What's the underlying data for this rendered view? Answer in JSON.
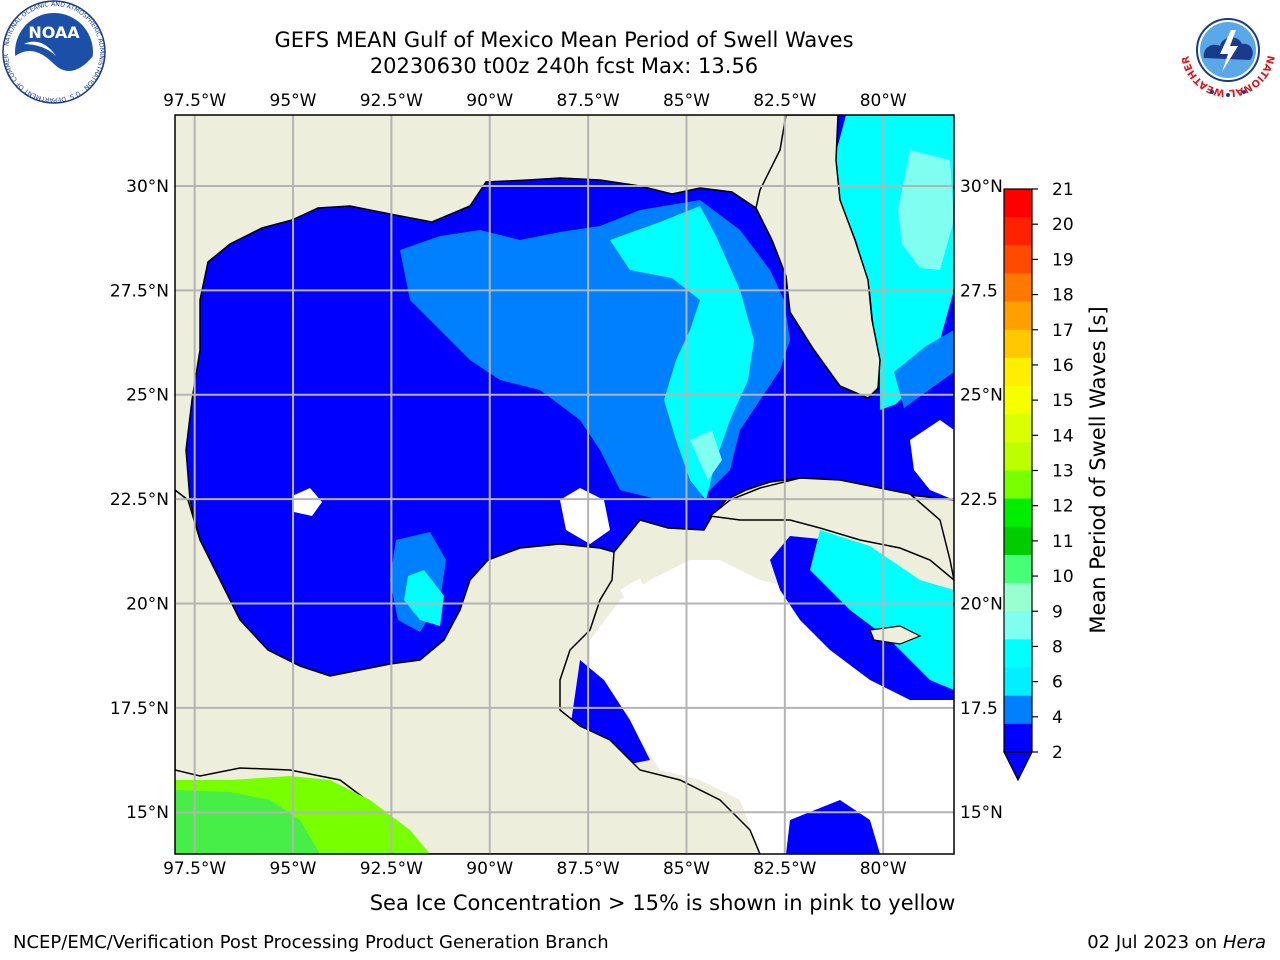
{
  "title_line1": "GEFS MEAN Gulf of Mexico Mean Period of Swell Waves",
  "title_line2": "20230630 t00z 240h fcst   Max: 13.56",
  "map": {
    "lon_labels": [
      "97.5°W",
      "95°W",
      "92.5°W",
      "90°W",
      "87.5°W",
      "85°W",
      "82.5°W",
      "80°W"
    ],
    "lat_labels_left": [
      "30°N",
      "27.5°N",
      "25°N",
      "22.5°N",
      "20°N",
      "17.5°N",
      "15°N"
    ],
    "lat_labels_right": [
      "30°N",
      "27.5",
      "25°N",
      "22.5",
      "20°N",
      "17.5",
      "15°N"
    ],
    "lon_values": [
      -97.5,
      -95,
      -92.5,
      -90,
      -87.5,
      -85,
      -82.5,
      -80
    ],
    "lat_values": [
      30,
      27.5,
      25,
      22.5,
      20,
      17.5,
      15
    ],
    "extent": {
      "lon_min": -98,
      "lon_max": -78.2,
      "lat_min": 14.0,
      "lat_max": 31.7
    },
    "colors": {
      "land": "#eeeedc",
      "grid": "#b4b4b4",
      "coast": "#000000"
    }
  },
  "colorbar": {
    "label": "Mean Period of Swell Waves [s]",
    "ticks": [
      "21",
      "20",
      "19",
      "18",
      "17",
      "16",
      "15",
      "14",
      "13",
      "12",
      "11",
      "10",
      "9",
      "8",
      "6",
      "4",
      "2"
    ],
    "band_colors": [
      "#ff0000",
      "#ff2200",
      "#ff4b00",
      "#ff7800",
      "#ffa000",
      "#ffc800",
      "#ffee00",
      "#f5ff00",
      "#daff00",
      "#bdff00",
      "#78ff00",
      "#00ee00",
      "#00cc00",
      "#48ff78",
      "#98ffd0",
      "#80fff0",
      "#00ffff",
      "#00f0ff",
      "#0080ff",
      "#0000ff"
    ],
    "extend_color": "#0000ff"
  },
  "footnote": "Sea Ice Concentration > 15% is shown in pink to yellow",
  "credit_left": "NCEP/EMC/Verification Post Processing Product Generation Branch",
  "credit_right_date": "02 Jul 2023 on",
  "credit_right_host": "Hera",
  "logos": {
    "noaa": "NOAA",
    "noaa_ring": "NATIONAL OCEANIC AND ATMOSPHERIC ADMINISTRATION · U.S. DEPARTMENT OF COMMERCE",
    "nws_ring": "NATIONAL WEATHER SERVICE"
  }
}
